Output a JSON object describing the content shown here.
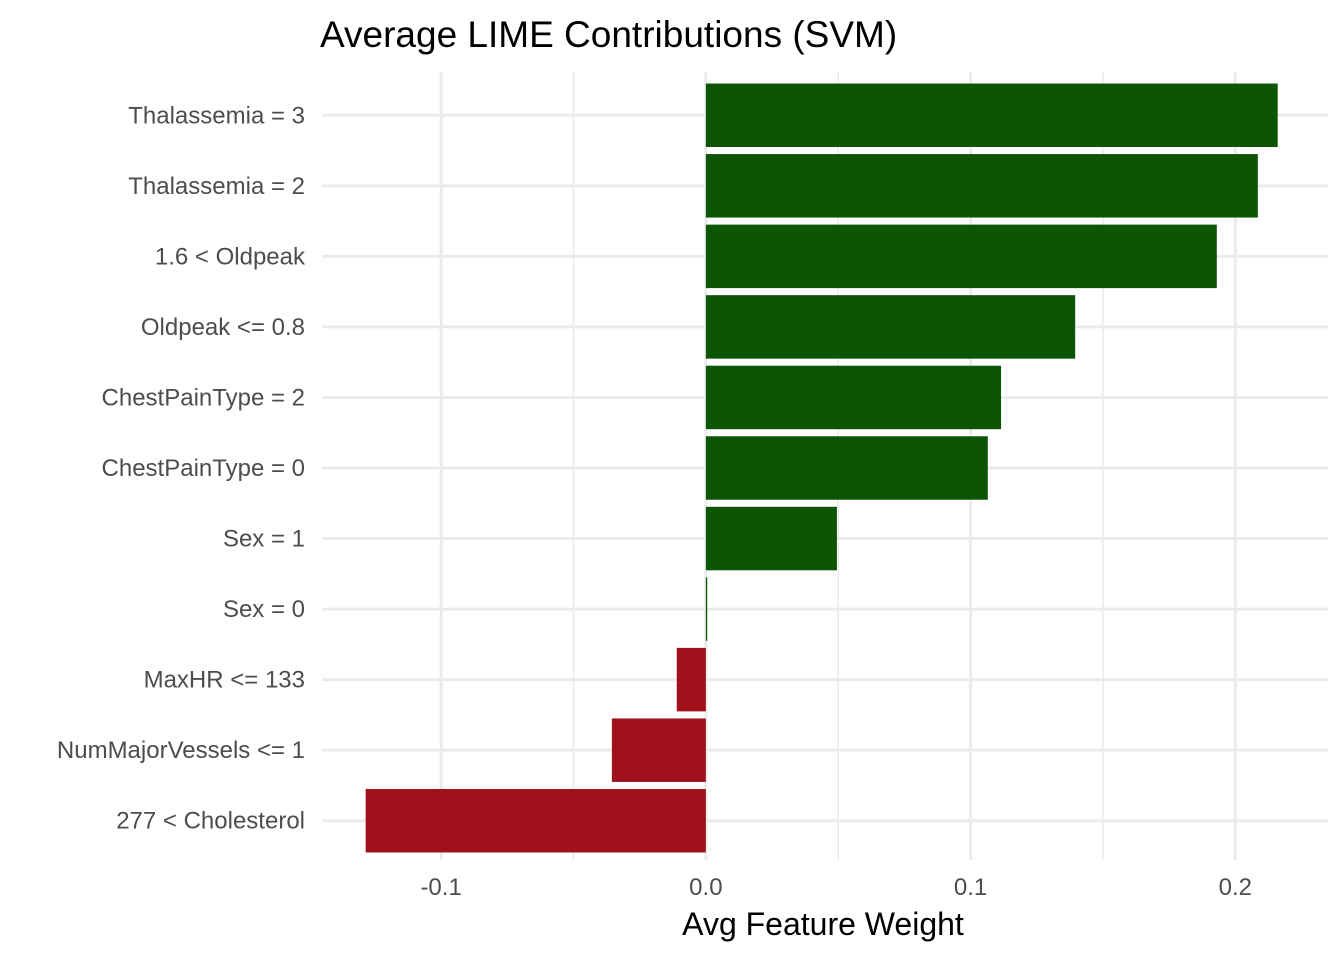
{
  "chart_data": {
    "type": "bar",
    "orientation": "horizontal",
    "title": "Average LIME Contributions (SVM)",
    "xlabel": "Avg Feature Weight",
    "ylabel": "",
    "xlim": [
      -0.145,
      0.235
    ],
    "x_ticks": [
      -0.1,
      0.0,
      0.1,
      0.2
    ],
    "x_tick_labels": [
      "-0.1",
      "0.0",
      "0.1",
      "0.2"
    ],
    "x_minor_ticks": [
      -0.15,
      -0.05,
      0.05,
      0.15
    ],
    "grid": true,
    "legend": "none",
    "categories": [
      "Thalassemia = 3",
      "Thalassemia = 2",
      "1.6 < Oldpeak",
      "Oldpeak <= 0.8",
      "ChestPainType = 2",
      "ChestPainType = 0",
      "Sex = 1",
      "Sex = 0",
      "MaxHR <= 133",
      "NumMajorVessels <= 1",
      "277 < Cholesterol"
    ],
    "values": [
      0.216,
      0.2085,
      0.193,
      0.1395,
      0.1115,
      0.1065,
      0.0495,
      0.0005,
      -0.011,
      -0.0355,
      -0.1285
    ],
    "colors": {
      "positive": "#0c5505",
      "negative": "#a0121b"
    }
  }
}
